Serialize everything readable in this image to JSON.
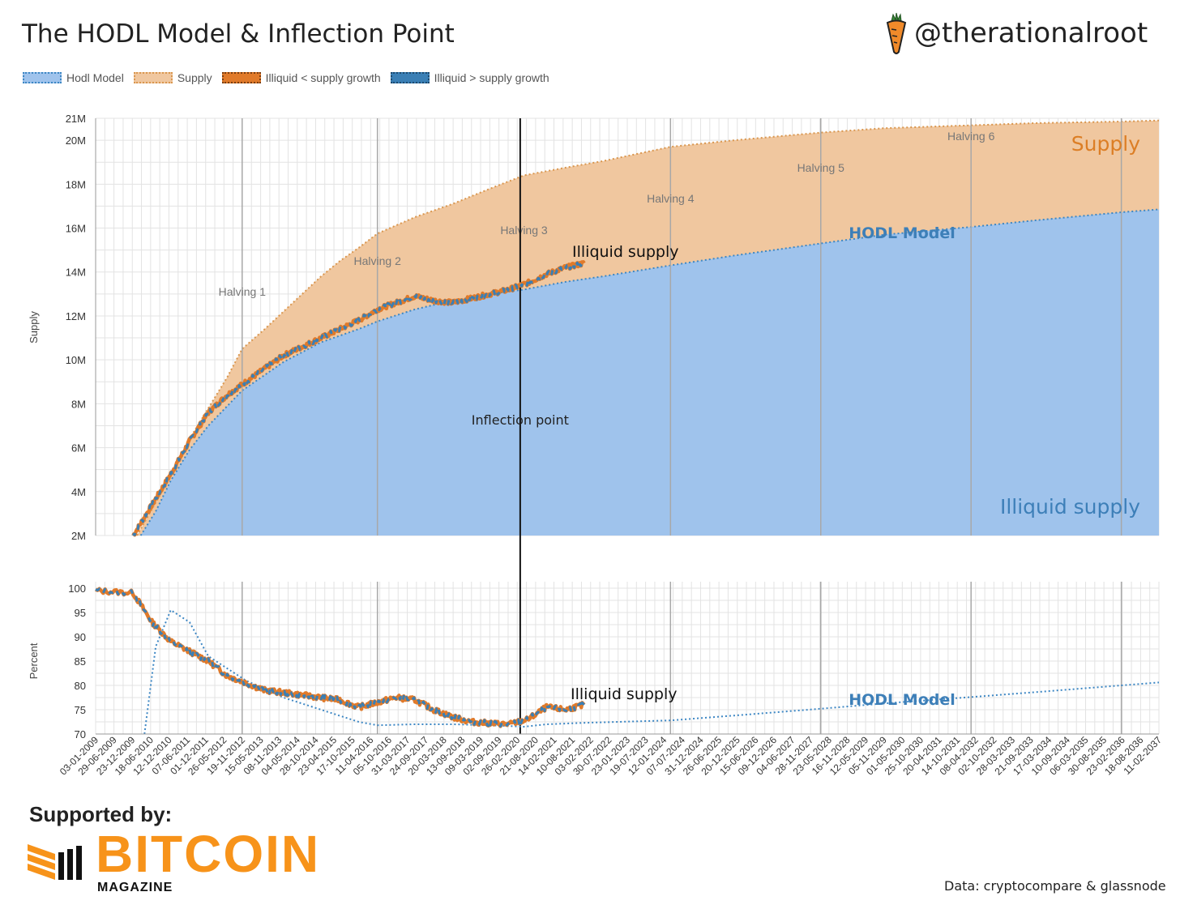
{
  "title": "The HODL Model & Inflection Point",
  "handle": "@therationalroot",
  "supported_by": "Supported by:",
  "brand": {
    "name": "BITCOIN",
    "sub": "MAGAZINE"
  },
  "source": "Data: cryptocompare & glassnode",
  "colors": {
    "hodl_fill": "#9fc3ec",
    "hodl_line": "#3d87c4",
    "supply_fill": "#f0c79f",
    "supply_line": "#d9964e",
    "orange_line": "#e07a2a",
    "blue_line": "#3a7fb5",
    "brand": "#f7931a",
    "label_blue": "#3d7fb8",
    "label_orange": "#dc7e25"
  },
  "legend": [
    {
      "label": "Hodl Model",
      "key": "hodl"
    },
    {
      "label": "Supply",
      "key": "supply"
    },
    {
      "label": "Illiquid < supply growth",
      "key": "orange"
    },
    {
      "label": "Illiquid > supply growth",
      "key": "blue"
    }
  ],
  "chart_data": [
    {
      "type": "area",
      "ylabel": "Supply",
      "y_tick_labels": [
        "2M",
        "4M",
        "6M",
        "8M",
        "10M",
        "12M",
        "14M",
        "16M",
        "18M",
        "20M",
        "21M"
      ],
      "y_tick_values": [
        2,
        4,
        6,
        8,
        10,
        12,
        14,
        16,
        18,
        20,
        21
      ],
      "ylim": [
        2,
        21
      ],
      "unit": "M",
      "x_range": [
        2009.0,
        2037.3
      ],
      "halvings": [
        {
          "label": "Halving 1",
          "x": 2012.9
        },
        {
          "label": "Halving 2",
          "x": 2016.5
        },
        {
          "label": "Halving 3",
          "x": 2020.4
        },
        {
          "label": "Halving 4",
          "x": 2024.3
        },
        {
          "label": "Halving 5",
          "x": 2028.3
        },
        {
          "label": "Halving 6",
          "x": 2032.3
        }
      ],
      "halving_lines": [
        2012.9,
        2016.5,
        2024.3,
        2028.3,
        2032.3,
        2036.3
      ],
      "inflection": {
        "label": "Inflection point",
        "x": 2020.3
      },
      "series": [
        {
          "name": "Supply",
          "x": [
            2010.1,
            2010.5,
            2011.0,
            2011.5,
            2012.0,
            2012.5,
            2012.9,
            2013.5,
            2014.0,
            2014.5,
            2015.0,
            2015.5,
            2016.0,
            2016.5,
            2017.5,
            2018.5,
            2019.5,
            2020.4,
            2021.5,
            2022.5,
            2024.3,
            2026.0,
            2028.3,
            2030.0,
            2032.3,
            2034.0,
            2036.3,
            2037.3
          ],
          "values": [
            2.0,
            3.2,
            4.7,
            6.4,
            7.8,
            9.2,
            10.5,
            11.4,
            12.2,
            13.0,
            13.8,
            14.5,
            15.1,
            15.75,
            16.5,
            17.1,
            17.8,
            18.4,
            18.75,
            19.05,
            19.7,
            20.0,
            20.35,
            20.55,
            20.68,
            20.78,
            20.85,
            20.9
          ]
        },
        {
          "name": "Hodl Model",
          "x": [
            2010.2,
            2010.6,
            2011.0,
            2011.5,
            2012.0,
            2012.9,
            2014.0,
            2015.0,
            2016.0,
            2016.5,
            2017.5,
            2018.5,
            2019.5,
            2020.4,
            2021.5,
            2022.5,
            2024.3,
            2026.0,
            2028.3,
            2030.0,
            2032.3,
            2034.0,
            2036.3,
            2037.3
          ],
          "values": [
            2.0,
            3.1,
            4.5,
            5.9,
            7.0,
            8.6,
            9.9,
            10.8,
            11.4,
            11.75,
            12.3,
            12.7,
            13.0,
            13.2,
            13.55,
            13.8,
            14.3,
            14.75,
            15.3,
            15.7,
            16.05,
            16.35,
            16.72,
            16.85
          ]
        },
        {
          "name": "Illiquid supply",
          "x": [
            2010.0,
            2010.5,
            2011.0,
            2011.5,
            2012.0,
            2012.5,
            2013.0,
            2013.5,
            2014.0,
            2014.5,
            2015.0,
            2015.5,
            2016.0,
            2016.5,
            2017.0,
            2017.5,
            2018.0,
            2018.5,
            2019.0,
            2019.5,
            2020.0,
            2020.5,
            2021.0,
            2021.5,
            2022.0
          ],
          "values": [
            2.0,
            3.4,
            4.8,
            6.3,
            7.6,
            8.4,
            9.0,
            9.6,
            10.2,
            10.6,
            11.0,
            11.4,
            11.8,
            12.3,
            12.6,
            12.9,
            12.7,
            12.6,
            12.8,
            13.0,
            13.2,
            13.5,
            13.9,
            14.2,
            14.4
          ]
        }
      ],
      "annotations": [
        {
          "text": "Supply",
          "x": 2034.9,
          "y": 20.0
        },
        {
          "text": "HODL Model",
          "x": 2029.0,
          "y": 15.6
        },
        {
          "text": "Illiquid supply",
          "x": 2034.7,
          "y": 3.2
        },
        {
          "text": "Illiquid supply",
          "x": 2021.1,
          "y": 14.6
        }
      ]
    },
    {
      "type": "line",
      "ylabel": "Percent",
      "y_tick_labels": [
        "70",
        "75",
        "80",
        "85",
        "90",
        "95",
        "100"
      ],
      "y_tick_values": [
        70,
        75,
        80,
        85,
        90,
        95,
        100
      ],
      "ylim": [
        70,
        100
      ],
      "x_tick_labels": [
        "03-01-2009",
        "29-06-2009",
        "23-12-2009",
        "18-06-2010",
        "12-12-2010",
        "07-06-2011",
        "01-12-2011",
        "26-05-2012",
        "19-11-2012",
        "15-05-2013",
        "08-11-2013",
        "04-05-2014",
        "28-10-2014",
        "23-04-2015",
        "17-10-2015",
        "11-04-2016",
        "05-10-2016",
        "31-03-2017",
        "24-09-2017",
        "20-03-2018",
        "13-09-2018",
        "09-03-2019",
        "02-09-2019",
        "26-02-2020",
        "21-08-2020",
        "14-02-2021",
        "10-08-2021",
        "03-02-2022",
        "30-07-2022",
        "23-01-2023",
        "19-07-2023",
        "12-01-2024",
        "07-07-2024",
        "31-12-2024",
        "26-06-2025",
        "20-12-2025",
        "15-06-2026",
        "09-12-2026",
        "04-06-2027",
        "28-11-2027",
        "23-05-2028",
        "16-11-2028",
        "12-05-2029",
        "05-11-2029",
        "01-05-2030",
        "25-10-2030",
        "20-04-2031",
        "14-10-2031",
        "08-04-2032",
        "02-10-2032",
        "28-03-2033",
        "21-09-2033",
        "17-03-2034",
        "10-09-2034",
        "06-03-2035",
        "30-08-2035",
        "23-02-2036",
        "18-08-2036",
        "11-02-2037"
      ],
      "series": [
        {
          "name": "Illiquid percent",
          "x": [
            2009.0,
            2010.0,
            2010.5,
            2011.0,
            2011.5,
            2012.0,
            2012.5,
            2013.0,
            2013.5,
            2014.0,
            2014.5,
            2015.0,
            2015.5,
            2016.0,
            2016.5,
            2017.0,
            2017.5,
            2018.0,
            2018.5,
            2019.0,
            2019.5,
            2020.0,
            2020.5,
            2021.0,
            2021.5,
            2022.0
          ],
          "values": [
            99.5,
            99.0,
            93.0,
            89.0,
            87.0,
            85.0,
            82.0,
            80.5,
            79.0,
            78.5,
            78.0,
            77.5,
            77.0,
            75.5,
            76.5,
            77.5,
            77.0,
            75.0,
            73.5,
            72.5,
            72.2,
            72.0,
            73.0,
            75.5,
            75.0,
            76.0
          ]
        },
        {
          "name": "HODL Model percent",
          "x": [
            2010.3,
            2010.6,
            2011.0,
            2011.5,
            2012.0,
            2013.0,
            2014.0,
            2015.0,
            2016.0,
            2016.5,
            2017.5,
            2018.5,
            2019.5,
            2020.4,
            2021.0,
            2022.0,
            2024.3,
            2026.0,
            2028.3,
            2030.0,
            2032.3,
            2034.0,
            2036.3,
            2037.3
          ],
          "values": [
            70.0,
            88.0,
            95.5,
            93.0,
            86.0,
            81.0,
            77.5,
            75.0,
            72.5,
            71.8,
            72.0,
            72.0,
            71.8,
            71.5,
            72.0,
            72.3,
            72.8,
            73.8,
            75.2,
            76.3,
            77.6,
            78.6,
            80.0,
            80.6
          ]
        }
      ],
      "annotations": [
        {
          "text": "Illiquid supply",
          "x": 2021.1,
          "y": 78.0
        },
        {
          "text": "HODL Model",
          "x": 2029.0,
          "y": 75.8
        }
      ]
    }
  ]
}
